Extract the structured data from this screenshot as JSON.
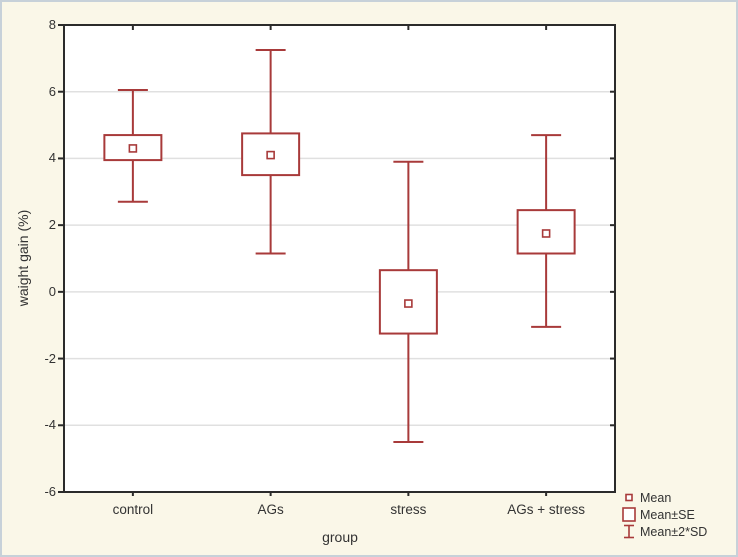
{
  "frame": {
    "background": "#faf7e8",
    "border_color": "#c7d1d9"
  },
  "chart_data": {
    "type": "box",
    "xlabel": "group",
    "ylabel": "waight gain (%)",
    "ylim": [
      -6,
      8
    ],
    "yticks": [
      8,
      6,
      4,
      2,
      0,
      -2,
      -4,
      -6
    ],
    "grid": "horizontal",
    "legend_position": "bottom-right",
    "legend": [
      "Mean",
      "Mean±SE",
      "Mean±2*SD"
    ],
    "categories": [
      "control",
      "AGs",
      "stress",
      "AGs + stress"
    ],
    "groups": [
      {
        "name": "control",
        "mean": 4.3,
        "se_low": 3.95,
        "se_high": 4.7,
        "sd_low": 2.7,
        "sd_high": 6.05
      },
      {
        "name": "AGs",
        "mean": 4.1,
        "se_low": 3.5,
        "se_high": 4.75,
        "sd_low": 1.15,
        "sd_high": 7.25
      },
      {
        "name": "stress",
        "mean": -0.35,
        "se_low": -1.25,
        "se_high": 0.65,
        "sd_low": -4.5,
        "sd_high": 3.9
      },
      {
        "name": "AGs + stress",
        "mean": 1.75,
        "se_low": 1.15,
        "se_high": 2.45,
        "sd_low": -1.05,
        "sd_high": 4.7
      }
    ],
    "colors": {
      "box": "#a83a3a",
      "grid": "#e0e0e0",
      "axis": "#2b2b2b",
      "text": "#333333",
      "plot_bg": "#ffffff"
    }
  }
}
